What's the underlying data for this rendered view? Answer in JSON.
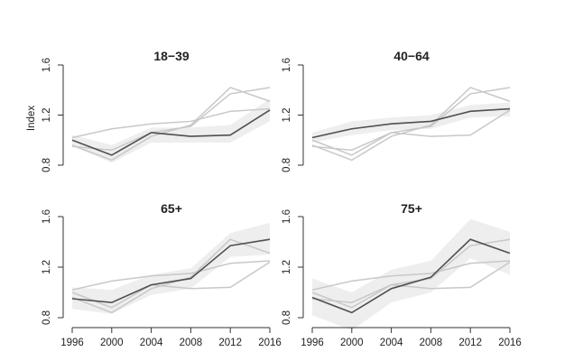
{
  "chart_data": {
    "type": "line",
    "layout": "2x2 small multiples",
    "ylabel": "Index",
    "x": [
      1996,
      2000,
      2004,
      2008,
      2012,
      2016
    ],
    "x_ticks": [
      "1996",
      "2000",
      "2004",
      "2008",
      "2012",
      "2016"
    ],
    "ylim": [
      0.8,
      1.6
    ],
    "y_ticks": [
      "0.8",
      "1.2",
      "1.6"
    ],
    "colors": {
      "highlight": "#505050",
      "other": "#c8c8c8",
      "band": "#ebebeb"
    },
    "profiles": {
      "18-39": [
        1.0,
        0.88,
        1.06,
        1.03,
        1.04,
        1.24
      ],
      "40-64": [
        1.02,
        1.09,
        1.13,
        1.15,
        1.23,
        1.25
      ],
      "65+": [
        0.95,
        0.92,
        1.06,
        1.11,
        1.37,
        1.42
      ],
      "75+": [
        0.96,
        0.84,
        1.03,
        1.12,
        1.42,
        1.31
      ]
    },
    "panels": [
      {
        "title": "18−39",
        "highlight": "18-39",
        "band_lower": [
          0.95,
          0.82,
          0.98,
          0.98,
          0.98,
          1.15
        ],
        "band_upper": [
          1.04,
          0.96,
          1.1,
          1.1,
          1.12,
          1.33
        ]
      },
      {
        "title": "40−64",
        "highlight": "40-64",
        "band_lower": [
          0.98,
          1.04,
          1.08,
          1.09,
          1.18,
          1.19
        ],
        "band_upper": [
          1.06,
          1.15,
          1.18,
          1.2,
          1.28,
          1.3
        ]
      },
      {
        "title": "65+",
        "highlight": "65+",
        "band_lower": [
          0.87,
          0.83,
          0.98,
          1.03,
          1.28,
          1.3
        ],
        "band_upper": [
          1.04,
          1.02,
          1.14,
          1.19,
          1.47,
          1.55
        ]
      },
      {
        "title": "75+",
        "highlight": "75+",
        "band_lower": [
          0.82,
          0.7,
          0.92,
          1.0,
          1.27,
          1.14
        ],
        "band_upper": [
          1.11,
          1.0,
          1.18,
          1.25,
          1.58,
          1.48
        ]
      }
    ]
  }
}
